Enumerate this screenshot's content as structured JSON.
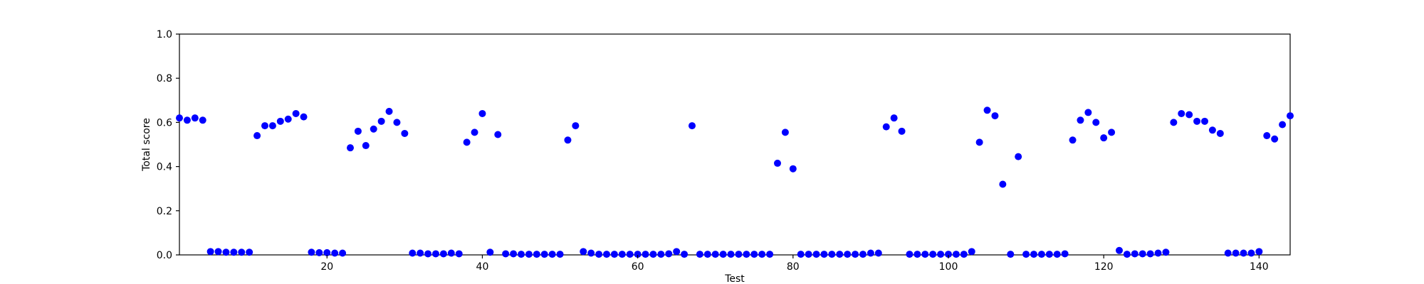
{
  "chart_data": {
    "type": "scatter",
    "xlabel": "Test",
    "ylabel": "Total score",
    "xlim": [
      1,
      144
    ],
    "ylim": [
      0,
      1.0
    ],
    "xticks": [
      20,
      40,
      60,
      80,
      100,
      120,
      140
    ],
    "yticks": [
      0.0,
      0.2,
      0.4,
      0.6,
      0.8,
      1.0
    ],
    "xtick_labels": [
      "20",
      "40",
      "60",
      "80",
      "100",
      "120",
      "140"
    ],
    "ytick_labels": [
      "0.0",
      "0.2",
      "0.4",
      "0.6",
      "0.8",
      "1.0"
    ],
    "grid": false,
    "marker_color": "#0000ff",
    "series": [
      {
        "x": [
          1,
          2,
          3,
          4,
          5,
          6,
          7,
          8,
          9,
          10,
          11,
          12,
          13,
          14,
          15,
          16,
          17,
          18,
          19,
          20,
          21,
          22,
          23,
          24,
          25,
          26,
          27,
          28,
          29,
          30,
          31,
          32,
          33,
          34,
          35,
          36,
          37,
          38,
          39,
          40,
          41,
          42,
          43,
          44,
          45,
          46,
          47,
          48,
          49,
          50,
          51,
          52,
          53,
          54,
          55,
          56,
          57,
          58,
          59,
          60,
          61,
          62,
          63,
          64,
          65,
          66,
          67,
          68,
          69,
          70,
          71,
          72,
          73,
          74,
          75,
          76,
          77,
          78,
          79,
          80,
          81,
          82,
          83,
          84,
          85,
          86,
          87,
          88,
          89,
          90,
          91,
          92,
          93,
          94,
          95,
          96,
          97,
          98,
          99,
          100,
          101,
          102,
          103,
          104,
          105,
          106,
          107,
          108,
          109,
          110,
          111,
          112,
          113,
          114,
          115,
          116,
          117,
          118,
          119,
          120,
          121,
          122,
          123,
          124,
          125,
          126,
          127,
          128,
          129,
          130,
          131,
          132,
          133,
          134,
          135,
          136,
          137,
          138,
          139,
          140,
          141,
          142,
          143,
          144
        ],
        "y": [
          0.62,
          0.61,
          0.62,
          0.61,
          0.015,
          0.015,
          0.012,
          0.012,
          0.012,
          0.012,
          0.54,
          0.585,
          0.585,
          0.605,
          0.615,
          0.64,
          0.625,
          0.012,
          0.01,
          0.01,
          0.008,
          0.008,
          0.485,
          0.56,
          0.495,
          0.57,
          0.605,
          0.65,
          0.6,
          0.55,
          0.008,
          0.008,
          0.005,
          0.005,
          0.005,
          0.008,
          0.005,
          0.51,
          0.555,
          0.64,
          0.012,
          0.545,
          0.005,
          0.005,
          0.003,
          0.003,
          0.003,
          0.003,
          0.003,
          0.003,
          0.52,
          0.585,
          0.015,
          0.008,
          0.003,
          0.003,
          0.003,
          0.003,
          0.003,
          0.003,
          0.003,
          0.003,
          0.003,
          0.005,
          0.015,
          0.003,
          0.585,
          0.003,
          0.003,
          0.003,
          0.003,
          0.003,
          0.003,
          0.003,
          0.003,
          0.003,
          0.003,
          0.415,
          0.555,
          0.39,
          0.003,
          0.003,
          0.003,
          0.003,
          0.003,
          0.003,
          0.003,
          0.003,
          0.003,
          0.008,
          0.008,
          0.58,
          0.62,
          0.56,
          0.003,
          0.003,
          0.003,
          0.003,
          0.003,
          0.003,
          0.003,
          0.003,
          0.015,
          0.51,
          0.655,
          0.63,
          0.32,
          0.003,
          0.445,
          0.003,
          0.003,
          0.003,
          0.003,
          0.003,
          0.005,
          0.52,
          0.61,
          0.645,
          0.6,
          0.53,
          0.555,
          0.02,
          0.003,
          0.005,
          0.005,
          0.005,
          0.008,
          0.012,
          0.6,
          0.64,
          0.635,
          0.605,
          0.605,
          0.565,
          0.55,
          0.008,
          0.008,
          0.008,
          0.008,
          0.015,
          0.54,
          0.525,
          0.59,
          0.63
        ]
      }
    ]
  }
}
